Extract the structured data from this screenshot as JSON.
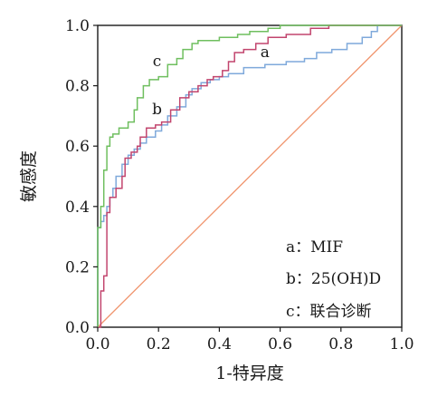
{
  "chart_data": {
    "type": "line",
    "xlabel": "1-特异度",
    "ylabel": "敏感度",
    "xlim": [
      0,
      1
    ],
    "ylim": [
      0,
      1
    ],
    "x_ticks": [
      "0.0",
      "0.2",
      "0.4",
      "0.6",
      "0.8",
      "1.0"
    ],
    "y_ticks": [
      "0.0",
      "0.2",
      "0.4",
      "0.6",
      "0.8",
      "1.0"
    ],
    "grid": false,
    "legend_position": "bottom-right",
    "legend": [
      "a：MIF",
      "b：25(OH)D",
      "c：联合诊断"
    ],
    "reference_line": {
      "from": [
        0,
        0
      ],
      "to": [
        1,
        1
      ],
      "color": "#f0956e"
    },
    "series": [
      {
        "label": "a",
        "color": "#7fa9db",
        "label_at": [
          0.55,
          0.895
        ],
        "points": [
          [
            0,
            0
          ],
          [
            0,
            0.33
          ],
          [
            0.01,
            0.35
          ],
          [
            0.02,
            0.37
          ],
          [
            0.03,
            0.4
          ],
          [
            0.04,
            0.43
          ],
          [
            0.05,
            0.46
          ],
          [
            0.06,
            0.5
          ],
          [
            0.08,
            0.54
          ],
          [
            0.1,
            0.57
          ],
          [
            0.12,
            0.59
          ],
          [
            0.14,
            0.61
          ],
          [
            0.16,
            0.63
          ],
          [
            0.19,
            0.65
          ],
          [
            0.21,
            0.67
          ],
          [
            0.23,
            0.7
          ],
          [
            0.26,
            0.73
          ],
          [
            0.29,
            0.77
          ],
          [
            0.31,
            0.79
          ],
          [
            0.34,
            0.81
          ],
          [
            0.37,
            0.82
          ],
          [
            0.4,
            0.83
          ],
          [
            0.43,
            0.84
          ],
          [
            0.45,
            0.84
          ],
          [
            0.48,
            0.86
          ],
          [
            0.5,
            0.86
          ],
          [
            0.55,
            0.87
          ],
          [
            0.6,
            0.87
          ],
          [
            0.62,
            0.88
          ],
          [
            0.65,
            0.88
          ],
          [
            0.68,
            0.89
          ],
          [
            0.72,
            0.91
          ],
          [
            0.77,
            0.92
          ],
          [
            0.82,
            0.94
          ],
          [
            0.87,
            0.96
          ],
          [
            0.9,
            0.98
          ],
          [
            0.92,
            1.0
          ],
          [
            1.0,
            1.0
          ]
        ]
      },
      {
        "label": "b",
        "color": "#c2456e",
        "label_at": [
          0.195,
          0.705
        ],
        "points": [
          [
            0,
            0
          ],
          [
            0.01,
            0.06
          ],
          [
            0.01,
            0.12
          ],
          [
            0.02,
            0.17
          ],
          [
            0.03,
            0.25
          ],
          [
            0.03,
            0.38
          ],
          [
            0.04,
            0.43
          ],
          [
            0.06,
            0.46
          ],
          [
            0.08,
            0.5
          ],
          [
            0.09,
            0.56
          ],
          [
            0.11,
            0.58
          ],
          [
            0.13,
            0.6
          ],
          [
            0.14,
            0.63
          ],
          [
            0.16,
            0.66
          ],
          [
            0.19,
            0.67
          ],
          [
            0.21,
            0.68
          ],
          [
            0.24,
            0.72
          ],
          [
            0.27,
            0.76
          ],
          [
            0.3,
            0.78
          ],
          [
            0.33,
            0.8
          ],
          [
            0.36,
            0.82
          ],
          [
            0.38,
            0.83
          ],
          [
            0.41,
            0.85
          ],
          [
            0.43,
            0.88
          ],
          [
            0.45,
            0.91
          ],
          [
            0.48,
            0.92
          ],
          [
            0.52,
            0.94
          ],
          [
            0.56,
            0.96
          ],
          [
            0.62,
            0.97
          ],
          [
            0.7,
            0.99
          ],
          [
            0.76,
            1.0
          ],
          [
            1.0,
            1.0
          ]
        ]
      },
      {
        "label": "c",
        "color": "#6fbf5f",
        "label_at": [
          0.195,
          0.865
        ],
        "points": [
          [
            0,
            0
          ],
          [
            0,
            0.33
          ],
          [
            0.01,
            0.4
          ],
          [
            0.02,
            0.52
          ],
          [
            0.03,
            0.6
          ],
          [
            0.04,
            0.63
          ],
          [
            0.05,
            0.64
          ],
          [
            0.07,
            0.66
          ],
          [
            0.1,
            0.68
          ],
          [
            0.12,
            0.72
          ],
          [
            0.13,
            0.76
          ],
          [
            0.15,
            0.8
          ],
          [
            0.17,
            0.82
          ],
          [
            0.2,
            0.83
          ],
          [
            0.23,
            0.87
          ],
          [
            0.26,
            0.89
          ],
          [
            0.28,
            0.92
          ],
          [
            0.31,
            0.94
          ],
          [
            0.33,
            0.95
          ],
          [
            0.36,
            0.95
          ],
          [
            0.4,
            0.96
          ],
          [
            0.46,
            0.97
          ],
          [
            0.5,
            0.98
          ],
          [
            0.56,
            0.99
          ],
          [
            0.6,
            1.0
          ],
          [
            1.0,
            1.0
          ]
        ]
      }
    ]
  }
}
